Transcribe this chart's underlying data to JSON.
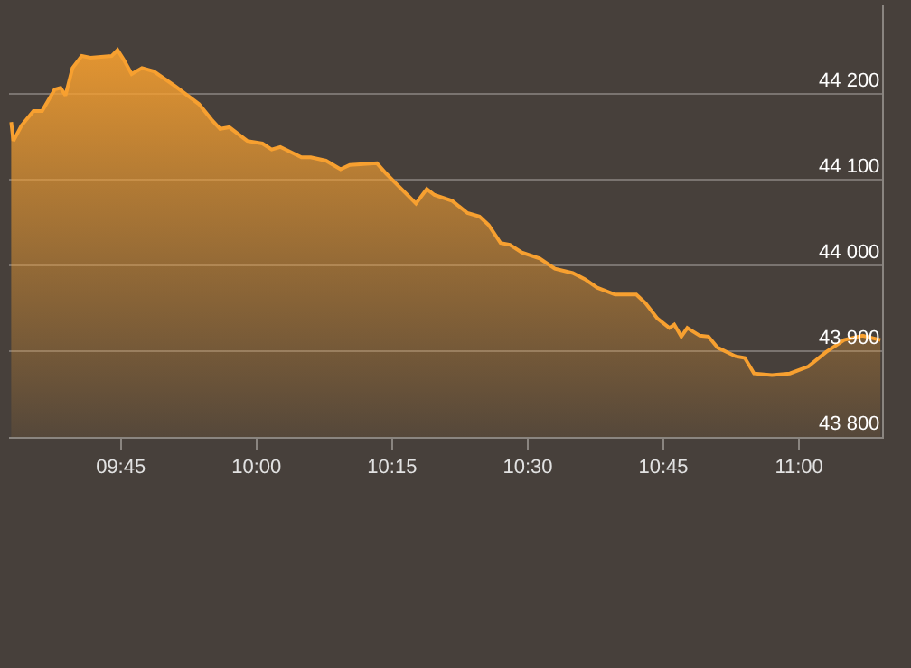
{
  "chart_data": {
    "type": "area",
    "color": "#f7a030",
    "x": [
      9.548,
      9.552,
      9.567,
      9.589,
      9.605,
      9.628,
      9.639,
      9.648,
      9.661,
      9.678,
      9.694,
      9.733,
      9.744,
      9.755,
      9.77,
      9.789,
      9.811,
      9.85,
      9.894,
      9.917,
      9.933,
      9.95,
      9.983,
      10.011,
      10.028,
      10.044,
      10.083,
      10.1,
      10.128,
      10.155,
      10.172,
      10.222,
      10.239,
      10.261,
      10.294,
      10.314,
      10.328,
      10.361,
      10.389,
      10.411,
      10.428,
      10.45,
      10.467,
      10.489,
      10.522,
      10.55,
      10.583,
      10.605,
      10.628,
      10.661,
      10.7,
      10.717,
      10.739,
      10.761,
      10.77,
      10.783,
      10.794,
      10.817,
      10.833,
      10.85,
      10.883,
      10.9,
      10.917,
      10.95,
      10.983,
      11.017,
      11.05,
      11.083,
      11.117,
      11.15
    ],
    "values": [
      44167,
      44145,
      44163,
      44180,
      44180,
      44205,
      44207,
      44198,
      44230,
      44244,
      44242,
      44244,
      44251,
      44240,
      44223,
      44230,
      44226,
      44209,
      44188,
      44170,
      44159,
      44161,
      44145,
      44142,
      44135,
      44138,
      44126,
      44126,
      44122,
      44112,
      44117,
      44119,
      44107,
      44093,
      44072,
      44089,
      44082,
      44075,
      44061,
      44057,
      44047,
      44026,
      44024,
      44015,
      44008,
      43996,
      43991,
      43984,
      43974,
      43966,
      43966,
      43956,
      43938,
      43927,
      43931,
      43917,
      43927,
      43918,
      43917,
      43904,
      43894,
      43892,
      43874,
      43872,
      43874,
      43882,
      43899,
      43913,
      43918,
      43913
    ],
    "xlim": [
      9.544,
      11.153
    ],
    "xticks": [
      {
        "value": 9.75,
        "label": "09:45"
      },
      {
        "value": 10,
        "label": "10:00"
      },
      {
        "value": 10.25,
        "label": "10:15"
      },
      {
        "value": 10.5,
        "label": "10:30"
      },
      {
        "value": 10.75,
        "label": "10:45"
      },
      {
        "value": 11,
        "label": "11:00"
      }
    ],
    "ylim": [
      43800,
      44303
    ],
    "yticks": [
      {
        "value": 43800,
        "label": "43 800"
      },
      {
        "value": 43900,
        "label": "43 900"
      },
      {
        "value": 44000,
        "label": "44 000"
      },
      {
        "value": 44100,
        "label": "44 100"
      },
      {
        "value": 44200,
        "label": "44 200"
      }
    ],
    "grid": "y",
    "marker": "none",
    "line_style": "solid"
  }
}
